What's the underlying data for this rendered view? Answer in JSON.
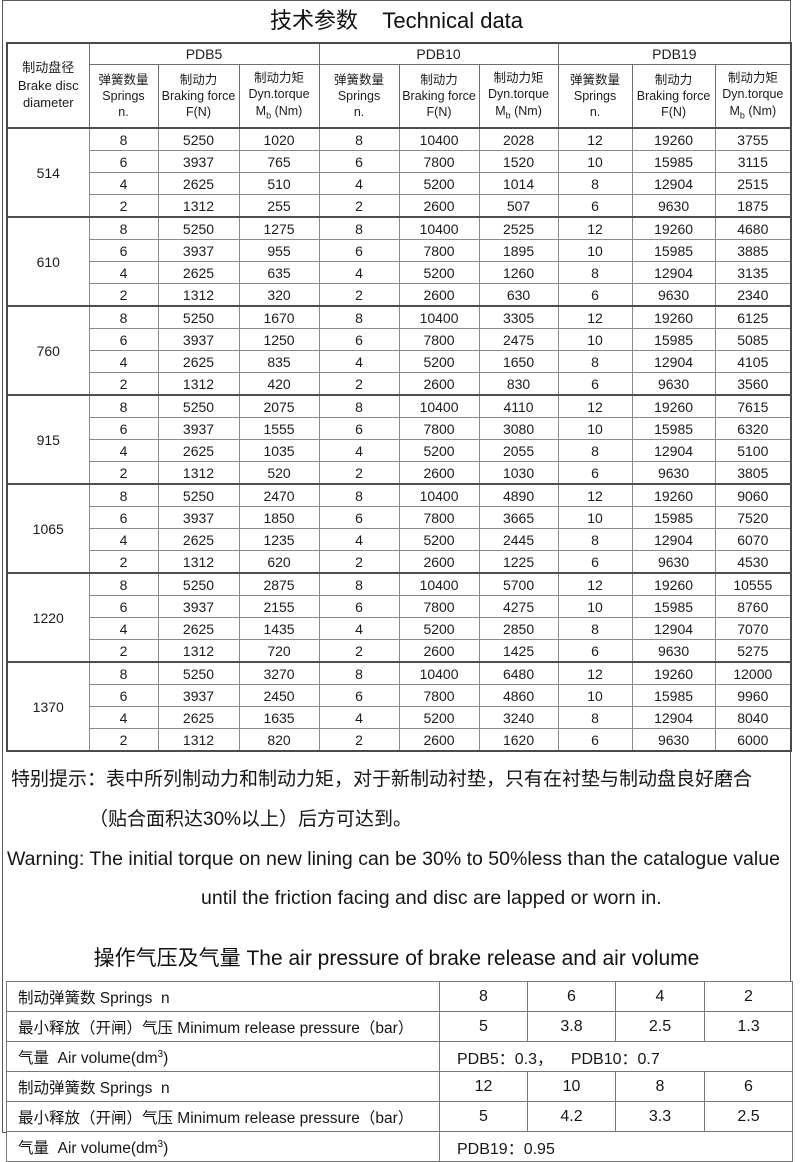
{
  "page_title": "技术参数    Technical data",
  "technical_table": {
    "diameter_header": [
      "制动盘径",
      "Brake disc",
      "diameter"
    ],
    "group_headers": [
      "PDB5",
      "PDB10",
      "PDB19"
    ],
    "sub_headers": {
      "springs": [
        "弹簧数量",
        "Springs",
        "n."
      ],
      "force": [
        "制动力",
        "Braking force",
        "F(N)"
      ],
      "torque": [
        "制动力矩",
        "Dyn.torque"
      ],
      "torque_unit": {
        "main": "M",
        "sub": "b",
        "rest": " (Nm)"
      }
    },
    "groups": [
      {
        "diameter": "514",
        "rows": [
          [
            "8",
            "5250",
            "1020",
            "8",
            "10400",
            "2028",
            "12",
            "19260",
            "3755"
          ],
          [
            "6",
            "3937",
            "765",
            "6",
            "7800",
            "1520",
            "10",
            "15985",
            "3115"
          ],
          [
            "4",
            "2625",
            "510",
            "4",
            "5200",
            "1014",
            "8",
            "12904",
            "2515"
          ],
          [
            "2",
            "1312",
            "255",
            "2",
            "2600",
            "507",
            "6",
            "9630",
            "1875"
          ]
        ]
      },
      {
        "diameter": "610",
        "rows": [
          [
            "8",
            "5250",
            "1275",
            "8",
            "10400",
            "2525",
            "12",
            "19260",
            "4680"
          ],
          [
            "6",
            "3937",
            "955",
            "6",
            "7800",
            "1895",
            "10",
            "15985",
            "3885"
          ],
          [
            "4",
            "2625",
            "635",
            "4",
            "5200",
            "1260",
            "8",
            "12904",
            "3135"
          ],
          [
            "2",
            "1312",
            "320",
            "2",
            "2600",
            "630",
            "6",
            "9630",
            "2340"
          ]
        ]
      },
      {
        "diameter": "760",
        "rows": [
          [
            "8",
            "5250",
            "1670",
            "8",
            "10400",
            "3305",
            "12",
            "19260",
            "6125"
          ],
          [
            "6",
            "3937",
            "1250",
            "6",
            "7800",
            "2475",
            "10",
            "15985",
            "5085"
          ],
          [
            "4",
            "2625",
            "835",
            "4",
            "5200",
            "1650",
            "8",
            "12904",
            "4105"
          ],
          [
            "2",
            "1312",
            "420",
            "2",
            "2600",
            "830",
            "6",
            "9630",
            "3560"
          ]
        ]
      },
      {
        "diameter": "915",
        "rows": [
          [
            "8",
            "5250",
            "2075",
            "8",
            "10400",
            "4110",
            "12",
            "19260",
            "7615"
          ],
          [
            "6",
            "3937",
            "1555",
            "6",
            "7800",
            "3080",
            "10",
            "15985",
            "6320"
          ],
          [
            "4",
            "2625",
            "1035",
            "4",
            "5200",
            "2055",
            "8",
            "12904",
            "5100"
          ],
          [
            "2",
            "1312",
            "520",
            "2",
            "2600",
            "1030",
            "6",
            "9630",
            "3805"
          ]
        ]
      },
      {
        "diameter": "1065",
        "rows": [
          [
            "8",
            "5250",
            "2470",
            "8",
            "10400",
            "4890",
            "12",
            "19260",
            "9060"
          ],
          [
            "6",
            "3937",
            "1850",
            "6",
            "7800",
            "3665",
            "10",
            "15985",
            "7520"
          ],
          [
            "4",
            "2625",
            "1235",
            "4",
            "5200",
            "2445",
            "8",
            "12904",
            "6070"
          ],
          [
            "2",
            "1312",
            "620",
            "2",
            "2600",
            "1225",
            "6",
            "9630",
            "4530"
          ]
        ]
      },
      {
        "diameter": "1220",
        "rows": [
          [
            "8",
            "5250",
            "2875",
            "8",
            "10400",
            "5700",
            "12",
            "19260",
            "10555"
          ],
          [
            "6",
            "3937",
            "2155",
            "6",
            "7800",
            "4275",
            "10",
            "15985",
            "8760"
          ],
          [
            "4",
            "2625",
            "1435",
            "4",
            "5200",
            "2850",
            "8",
            "12904",
            "7070"
          ],
          [
            "2",
            "1312",
            "720",
            "2",
            "2600",
            "1425",
            "6",
            "9630",
            "5275"
          ]
        ]
      },
      {
        "diameter": "1370",
        "rows": [
          [
            "8",
            "5250",
            "3270",
            "8",
            "10400",
            "6480",
            "12",
            "19260",
            "12000"
          ],
          [
            "6",
            "3937",
            "2450",
            "6",
            "7800",
            "4860",
            "10",
            "15985",
            "9960"
          ],
          [
            "4",
            "2625",
            "1635",
            "4",
            "5200",
            "3240",
            "8",
            "12904",
            "8040"
          ],
          [
            "2",
            "1312",
            "820",
            "2",
            "2600",
            "1620",
            "6",
            "9630",
            "6000"
          ]
        ]
      }
    ]
  },
  "warning": {
    "line1_zh": "特别提示：表中所列制动力和制动力矩，对于新制动衬垫，只有在衬垫与制动盘良好磨合",
    "line2_zh": "（贴合面积达30%以上）后方可达到。",
    "line1_en": "Warning: The initial torque on new lining can be 30% to 50%less than the catalogue value",
    "line2_en": "until the friction facing and disc are lapped or worn in."
  },
  "air_section": {
    "title": "操作气压及气量 The air pressure of brake release and air volume",
    "rows": [
      {
        "type": "values",
        "label": "制动弹簧数 Springs  n",
        "values": [
          "8",
          "6",
          "4",
          "2"
        ]
      },
      {
        "type": "values",
        "label": "最小释放（开闸）气压 Minimum release pressure（bar）",
        "values": [
          "5",
          "3.8",
          "2.5",
          "1.3"
        ]
      },
      {
        "type": "span",
        "label_pre": "气量  Air volume(dm",
        "label_sup": "3",
        "label_post": ")",
        "value": "PDB5：0.3，    PDB10：0.7"
      },
      {
        "type": "values",
        "label": "制动弹簧数 Springs  n",
        "values": [
          "12",
          "10",
          "8",
          "6"
        ]
      },
      {
        "type": "values",
        "label": "最小释放（开闸）气压 Minimum release pressure（bar）",
        "values": [
          "5",
          "4.2",
          "3.3",
          "2.5"
        ]
      },
      {
        "type": "span",
        "label_pre": "气量  Air volume(dm",
        "label_sup": "3",
        "label_post": ")",
        "value": "PDB19：0.95"
      }
    ]
  }
}
